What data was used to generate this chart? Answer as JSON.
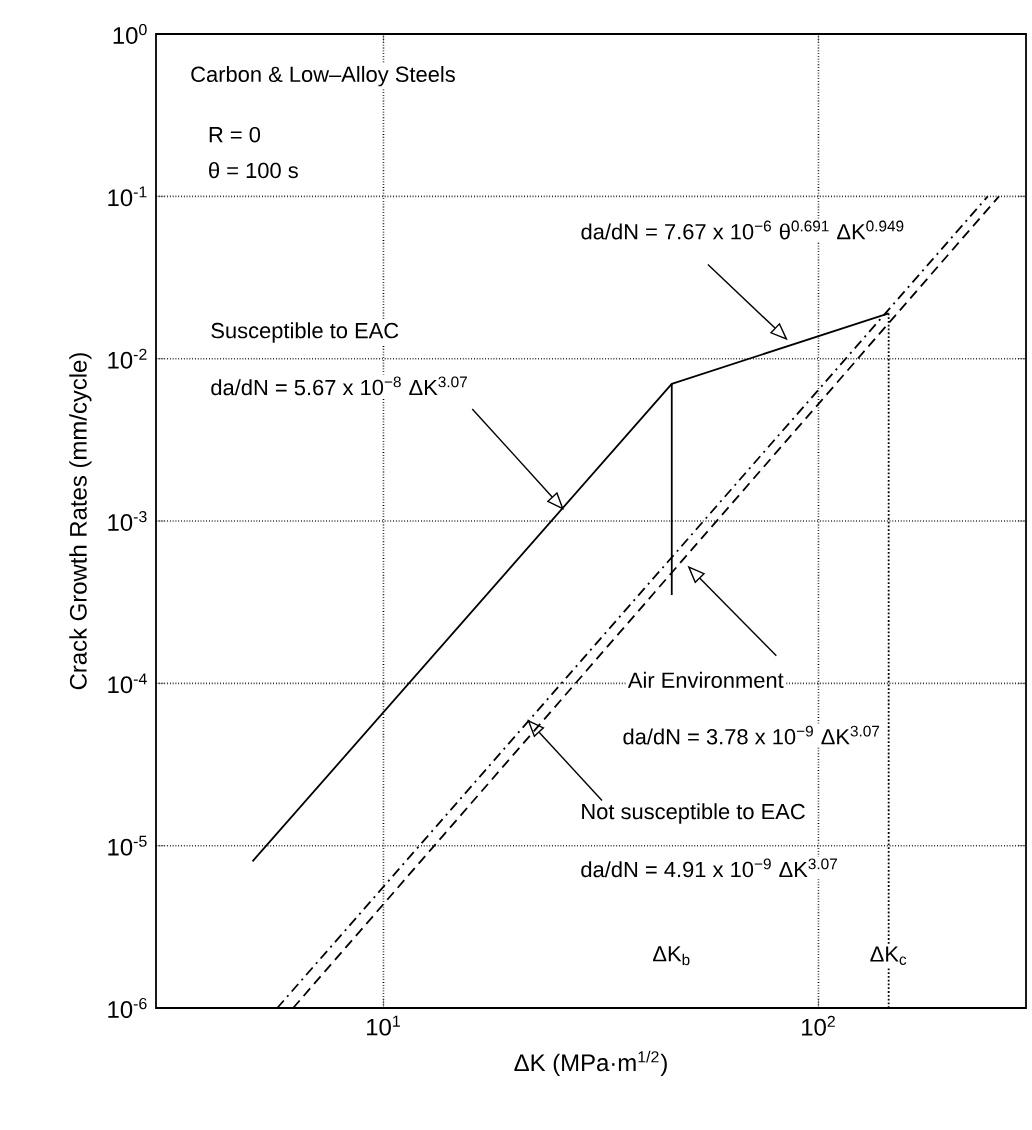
{
  "chart_data": {
    "type": "line",
    "log": "xy",
    "grid": true,
    "marker": "none",
    "xlabel": "ΔK (MPa·m$^{1/2}$)",
    "ylabel": "Crack Growth Rates (mm/cycle)",
    "xlim": [
      3,
      300
    ],
    "ylim": [
      1e-06,
      1
    ],
    "xticks": [
      {
        "value": 10,
        "label": "10$^{1}$"
      },
      {
        "value": 100,
        "label": "10$^{2}$"
      }
    ],
    "yticks": [
      {
        "value": 1e-06,
        "label": "10$^{-6}$"
      },
      {
        "value": 1e-05,
        "label": "10$^{-5}$"
      },
      {
        "value": 0.0001,
        "label": "10$^{-4}$"
      },
      {
        "value": 0.001,
        "label": "10$^{-3}$"
      },
      {
        "value": 0.01,
        "label": "10$^{-2}$"
      },
      {
        "value": 0.1,
        "label": "10$^{-1}$"
      },
      {
        "value": 1,
        "label": "10$^{0}$"
      }
    ],
    "series": [
      {
        "color": "#000000",
        "line_style": "solid",
        "x": [
          5,
          46,
          145
        ],
        "values": [
          8e-06,
          0.007,
          0.019
        ]
      },
      {
        "color": "#000000",
        "line_style": "dashdot",
        "x": [
          5.7,
          245
        ],
        "values": [
          1e-06,
          0.1
        ]
      },
      {
        "color": "#000000",
        "line_style": "dashed",
        "x": [
          6.2,
          260
        ],
        "values": [
          1e-06,
          0.1
        ]
      },
      {
        "color": "#000000",
        "line_style": "solid",
        "x": [
          46,
          46
        ],
        "values": [
          0.007,
          0.00035
        ]
      },
      {
        "color": "#000000",
        "line_style": "dotted",
        "x": [
          145,
          145
        ],
        "values": [
          0.019,
          1e-06
        ]
      }
    ],
    "annotations": [
      "Carbon & Low–Alloy Steels",
      "R = 0",
      "θ = 100 s",
      "Susceptible to EAC",
      {
        "text": "da/dN = 5.67 x 10$^{−8}$ ΔK$^{3.07}$",
        "x": 26,
        "y": 0.00117
      },
      {
        "text": "da/dN = 7.67 x 10$^{−6}$ θ$^{0.691}$ ΔK$^{0.949}$",
        "x": 85,
        "y": 0.013
      },
      {
        "text": "Air Environment",
        "x": 50,
        "y": 0.00053
      },
      "da/dN = 3.78 x 10$^{−9}$ ΔK$^{3.07}$",
      {
        "text": "Not susceptible to EAC",
        "x": 21.4,
        "y": 6e-05
      },
      "da/dN = 4.91 x 10$^{−9}$ ΔK$^{3.07}$",
      {
        "text": "ΔK$_{b}$",
        "x": 46
      },
      {
        "text": "ΔK$_{c}$",
        "x": 145
      }
    ]
  }
}
